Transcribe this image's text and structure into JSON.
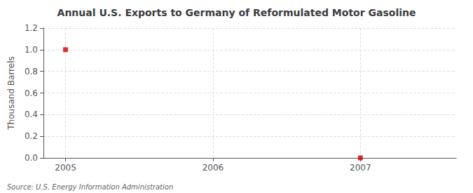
{
  "chart_data": {
    "type": "scatter",
    "title": "Annual U.S. Exports to Germany of Reformulated Motor Gasoline",
    "ylabel": "Thousand Barrels",
    "annotations": [
      "Source: U.S. Energy Information Administration"
    ],
    "x": [
      2005,
      2007
    ],
    "values": [
      1.0,
      0.0
    ],
    "color": "#cc0000",
    "marker": "square",
    "xlim": [
      2004.85,
      2007.65
    ],
    "xticks": [
      2005,
      2006,
      2007
    ],
    "ylim": [
      0.0,
      1.2
    ],
    "yticks": [
      {
        "value": 0.0,
        "label": "0.0"
      },
      0.2,
      0.4,
      0.6,
      0.8,
      {
        "value": 1.0,
        "label": "1.0"
      },
      1.2
    ],
    "grid": true
  }
}
